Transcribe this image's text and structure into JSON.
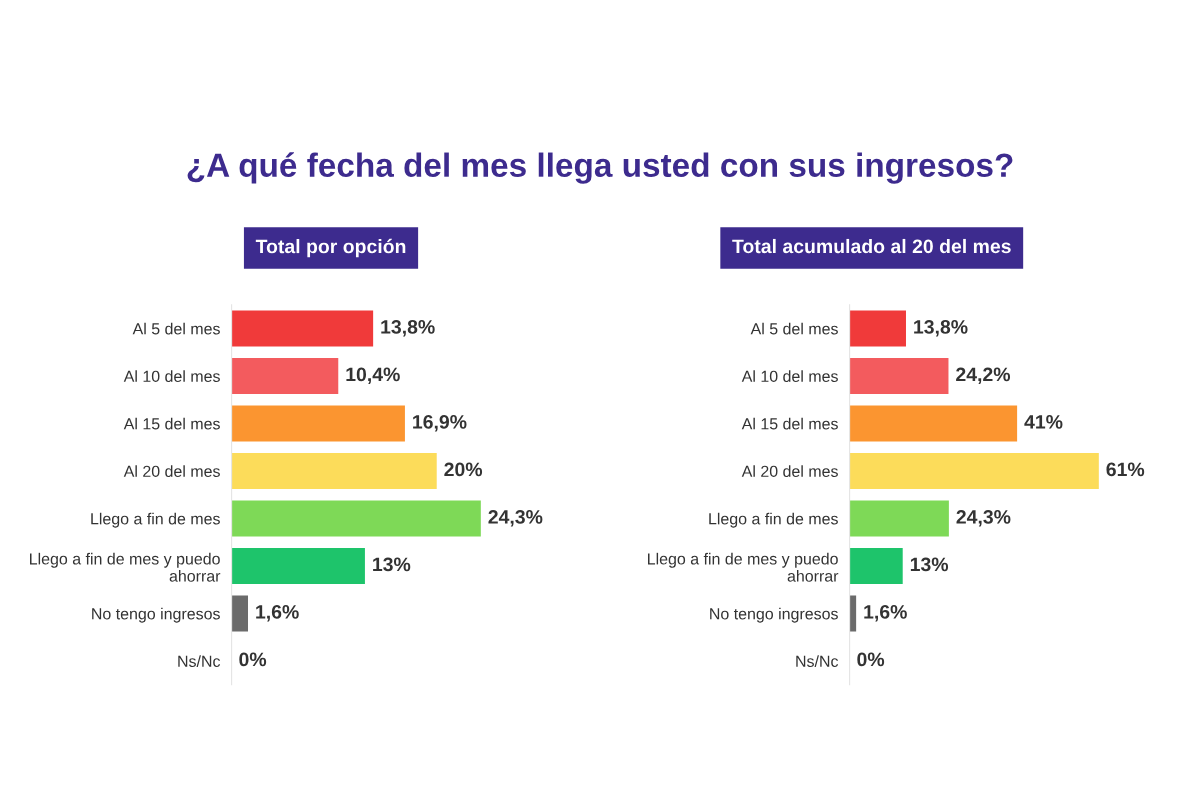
{
  "chart_data": [
    {
      "type": "bar",
      "orientation": "horizontal",
      "title": "¿A qué fecha del mes llega usted con sus ingresos?",
      "subtitle": "Total por opción",
      "categories": [
        "Al 5 del mes",
        "Al 10 del mes",
        "Al 15 del mes",
        "Al 20 del mes",
        "Llego a fin de mes",
        "Llego a fin de mes y puedo ahorrar",
        "No tengo ingresos",
        "Ns/Nc"
      ],
      "values": [
        13.8,
        10.4,
        16.9,
        20,
        24.3,
        13,
        1.6,
        0
      ],
      "value_labels": [
        "13,8%",
        "10,4%",
        "16,9%",
        "20%",
        "24,3%",
        "13%",
        "1,6%",
        "0%"
      ],
      "colors": [
        "#f03a3a",
        "#f35b5e",
        "#fb9530",
        "#fcdc5a",
        "#7ed957",
        "#1ec46b",
        "#6b6b6b",
        "#6b6b6b"
      ]
    },
    {
      "type": "bar",
      "orientation": "horizontal",
      "subtitle": "Total acumulado al 20 del mes",
      "categories": [
        "Al 5 del mes",
        "Al 10 del mes",
        "Al 15 del mes",
        "Al 20 del mes",
        "Llego a fin de mes",
        "Llego a fin de mes y puedo ahorrar",
        "No tengo ingresos",
        "Ns/Nc"
      ],
      "values": [
        13.8,
        24.2,
        41,
        61,
        24.3,
        13,
        1.6,
        0
      ],
      "value_labels": [
        "13,8%",
        "24,2%",
        "41%",
        "61%",
        "24,3%",
        "13%",
        "1,6%",
        "0%"
      ],
      "colors": [
        "#f03a3a",
        "#f35b5e",
        "#fb9530",
        "#fcdc5a",
        "#7ed957",
        "#1ec46b",
        "#6b6b6b",
        "#6b6b6b"
      ]
    }
  ]
}
